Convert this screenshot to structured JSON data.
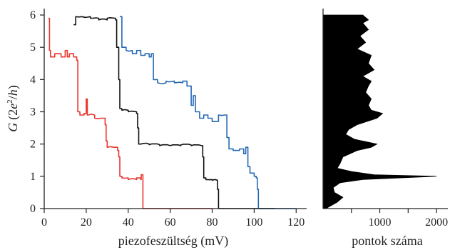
{
  "chart_data": [
    {
      "type": "line",
      "xlabel": "piezofeszültség (mV)",
      "ylabel": "G (2e²/h)",
      "ylabel_parts": {
        "G": "G",
        "open": "(2",
        "e": "e",
        "sup": "2",
        "slash": "/",
        "h": "h",
        "close": ")"
      },
      "xlim": [
        0,
        125
      ],
      "ylim": [
        0,
        6.2
      ],
      "xticks": [
        0,
        20,
        40,
        60,
        80,
        100,
        120
      ],
      "yticks": [
        0,
        1,
        2,
        3,
        4,
        5,
        6
      ],
      "grid": false,
      "series": [
        {
          "color": "#e8352e",
          "x": [
            2,
            2.5,
            3,
            5,
            8,
            10,
            11,
            12,
            14,
            15.5,
            16,
            17,
            19,
            20,
            20.5,
            21,
            24,
            27,
            29,
            29.5,
            30,
            33,
            35,
            35.5,
            36,
            37,
            40,
            44,
            46,
            46.2,
            47,
            80
          ],
          "y": [
            5.9,
            4.9,
            4.7,
            4.8,
            4.7,
            4.9,
            4.7,
            4.8,
            4.7,
            4.6,
            3.0,
            2.9,
            2.95,
            3.4,
            2.9,
            2.9,
            2.8,
            2.8,
            2.6,
            2.1,
            1.9,
            1.9,
            1.8,
            1.6,
            1.0,
            0.95,
            0.9,
            0.95,
            0.9,
            1.05,
            0.0,
            0.0
          ]
        },
        {
          "color": "#111111",
          "x": [
            14,
            15,
            18,
            22,
            26,
            30,
            34,
            34.5,
            35.5,
            36,
            37,
            40,
            44,
            44.5,
            45,
            46,
            50,
            55,
            60,
            65,
            70,
            75,
            75.5,
            76,
            77,
            80,
            82.5,
            83,
            84,
            110
          ],
          "y": [
            5.7,
            5.95,
            5.95,
            5.9,
            5.85,
            5.9,
            5.85,
            5.0,
            4.0,
            3.1,
            3.05,
            3.0,
            2.95,
            2.5,
            2.0,
            2.0,
            1.98,
            1.95,
            1.95,
            1.97,
            1.95,
            1.95,
            1.6,
            0.95,
            0.9,
            0.88,
            0.6,
            0.0,
            0.0,
            0.0
          ]
        },
        {
          "color": "#2469b3",
          "x": [
            36,
            37,
            39,
            42,
            44,
            46,
            48,
            50,
            51,
            52,
            54,
            58,
            62,
            66,
            68,
            70,
            71,
            72,
            74,
            76,
            78,
            80,
            83,
            86,
            87,
            88,
            90,
            93,
            95,
            96,
            97,
            98,
            100,
            101,
            101.5,
            102,
            103,
            120
          ],
          "y": [
            5.95,
            5.0,
            4.9,
            4.8,
            4.9,
            4.75,
            4.8,
            4.7,
            4.8,
            4.0,
            3.9,
            3.95,
            3.9,
            3.95,
            3.8,
            3.2,
            3.5,
            3.0,
            2.8,
            2.9,
            2.8,
            2.7,
            2.9,
            2.9,
            2.2,
            1.85,
            1.8,
            1.85,
            1.7,
            1.9,
            1.3,
            1.1,
            1.0,
            0.95,
            0.6,
            0.0,
            0.0,
            0.0
          ]
        }
      ]
    },
    {
      "type": "area",
      "orientation": "horizontal",
      "xlabel": "pontok száma",
      "ylim": [
        0,
        6.2
      ],
      "xlim": [
        0,
        2200
      ],
      "xticks": [
        1000,
        2000
      ],
      "xtick_labels": [
        "1000",
        "2000"
      ],
      "color": "#000000",
      "y": [
        0,
        0.1,
        0.2,
        0.35,
        0.5,
        0.65,
        0.8,
        0.9,
        1.0,
        1.05,
        1.15,
        1.25,
        1.4,
        1.6,
        1.8,
        1.9,
        2.0,
        2.15,
        2.3,
        2.45,
        2.6,
        2.8,
        2.95,
        3.05,
        3.2,
        3.4,
        3.6,
        3.8,
        3.95,
        4.1,
        4.3,
        4.5,
        4.75,
        4.95,
        5.15,
        5.35,
        5.55,
        5.75,
        5.85,
        6.0
      ],
      "x": [
        50,
        150,
        250,
        350,
        200,
        180,
        300,
        700,
        2000,
        900,
        500,
        250,
        300,
        350,
        600,
        850,
        950,
        550,
        400,
        450,
        600,
        950,
        1050,
        850,
        800,
        850,
        750,
        800,
        850,
        700,
        900,
        800,
        850,
        600,
        750,
        650,
        800,
        700,
        800,
        700
      ]
    }
  ]
}
